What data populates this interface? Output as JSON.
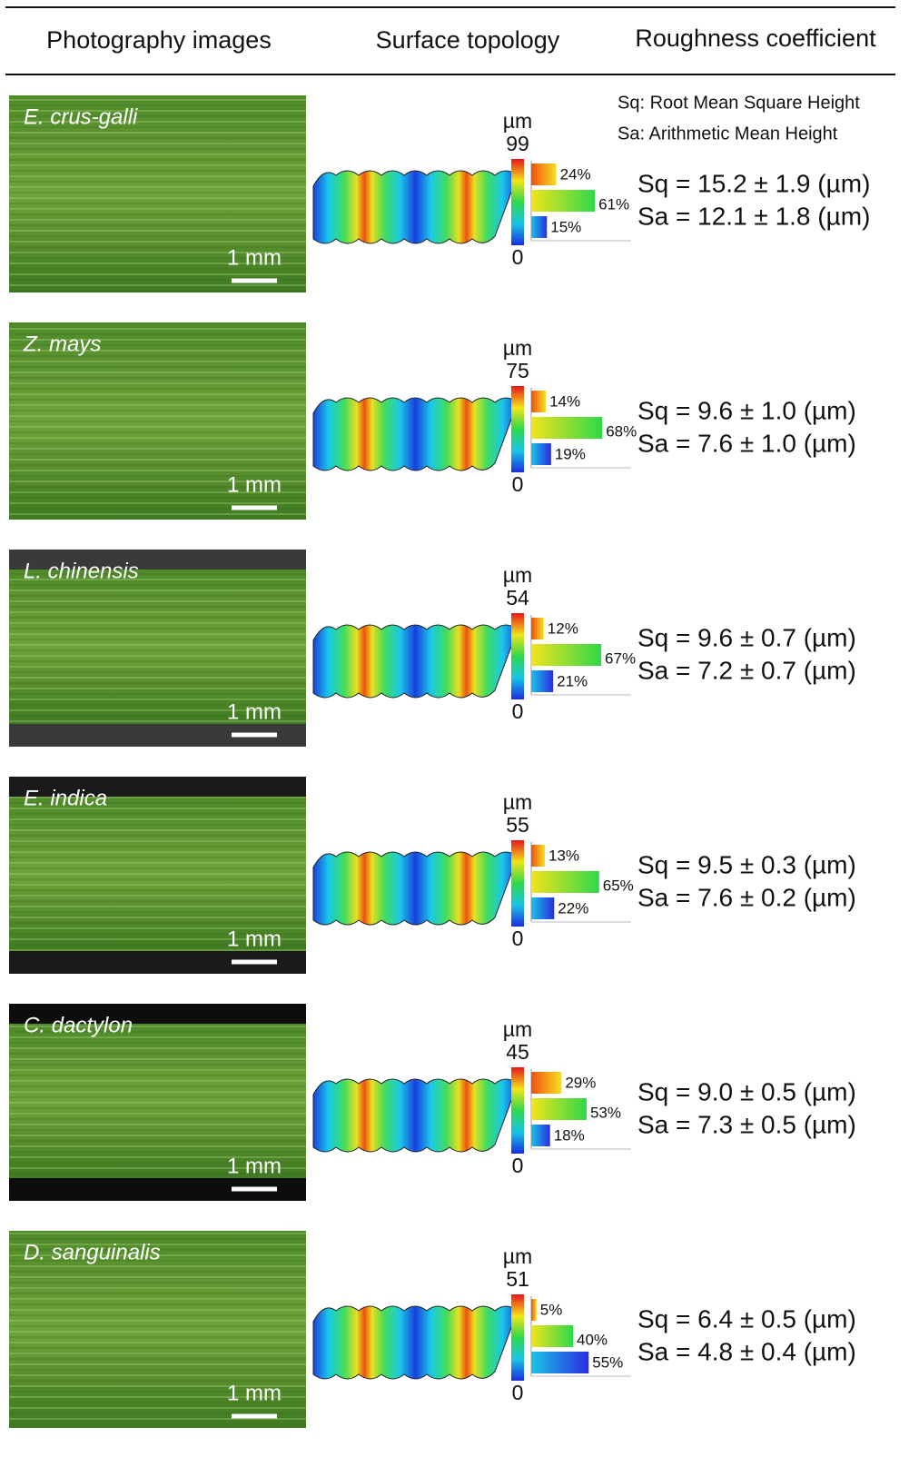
{
  "header": {
    "columns": [
      "Photography images",
      "Surface topology",
      "Roughness coefficient"
    ]
  },
  "legend": [
    "Sq: Root Mean Square Height",
    "Sa: Arithmetic Mean Height"
  ],
  "rows": [
    {
      "species": "E. crus-galli",
      "scale_bar": "1 mm",
      "unit": "µm",
      "max": 99,
      "min": 0,
      "percent": [
        24,
        61,
        15
      ],
      "percent_labels": [
        "24%",
        "61%",
        "15%"
      ],
      "sq": "Sq = 15.2 ± 1.9 (µm)",
      "sa": "Sa = 12.1 ± 1.8 (µm)"
    },
    {
      "species": "Z. mays",
      "scale_bar": "1 mm",
      "unit": "µm",
      "max": 75,
      "min": 0,
      "percent": [
        14,
        68,
        19
      ],
      "percent_labels": [
        "14%",
        "68%",
        "19%"
      ],
      "sq": "Sq = 9.6 ± 1.0 (µm)",
      "sa": "Sa = 7.6 ± 1.0 (µm)"
    },
    {
      "species": "L. chinensis",
      "scale_bar": "1 mm",
      "unit": "µm",
      "max": 54,
      "min": 0,
      "percent": [
        12,
        67,
        21
      ],
      "percent_labels": [
        "12%",
        "67%",
        "21%"
      ],
      "sq": "Sq = 9.6 ± 0.7 (µm)",
      "sa": "Sa = 7.2 ± 0.7 (µm)"
    },
    {
      "species": "E. indica",
      "scale_bar": "1 mm",
      "unit": "µm",
      "max": 55,
      "min": 0,
      "percent": [
        13,
        65,
        22
      ],
      "percent_labels": [
        "13%",
        "65%",
        "22%"
      ],
      "sq": "Sq = 9.5 ± 0.3 (µm)",
      "sa": "Sa = 7.6 ± 0.2 (µm)"
    },
    {
      "species": "C. dactylon",
      "scale_bar": "1 mm",
      "unit": "µm",
      "max": 45,
      "min": 0,
      "percent": [
        29,
        53,
        18
      ],
      "percent_labels": [
        "29%",
        "53%",
        "18%"
      ],
      "sq": "Sq = 9.0 ± 0.5 (µm)",
      "sa": "Sa = 7.3 ± 0.5 (µm)"
    },
    {
      "species": "D. sanguinalis",
      "scale_bar": "1 mm",
      "unit": "µm",
      "max": 51,
      "min": 0,
      "percent": [
        5,
        40,
        55
      ],
      "percent_labels": [
        "5%",
        "40%",
        "55%"
      ],
      "sq": "Sq = 6.4 ± 0.5 (µm)",
      "sa": "Sa = 4.8 ± 0.4 (µm)"
    }
  ]
}
